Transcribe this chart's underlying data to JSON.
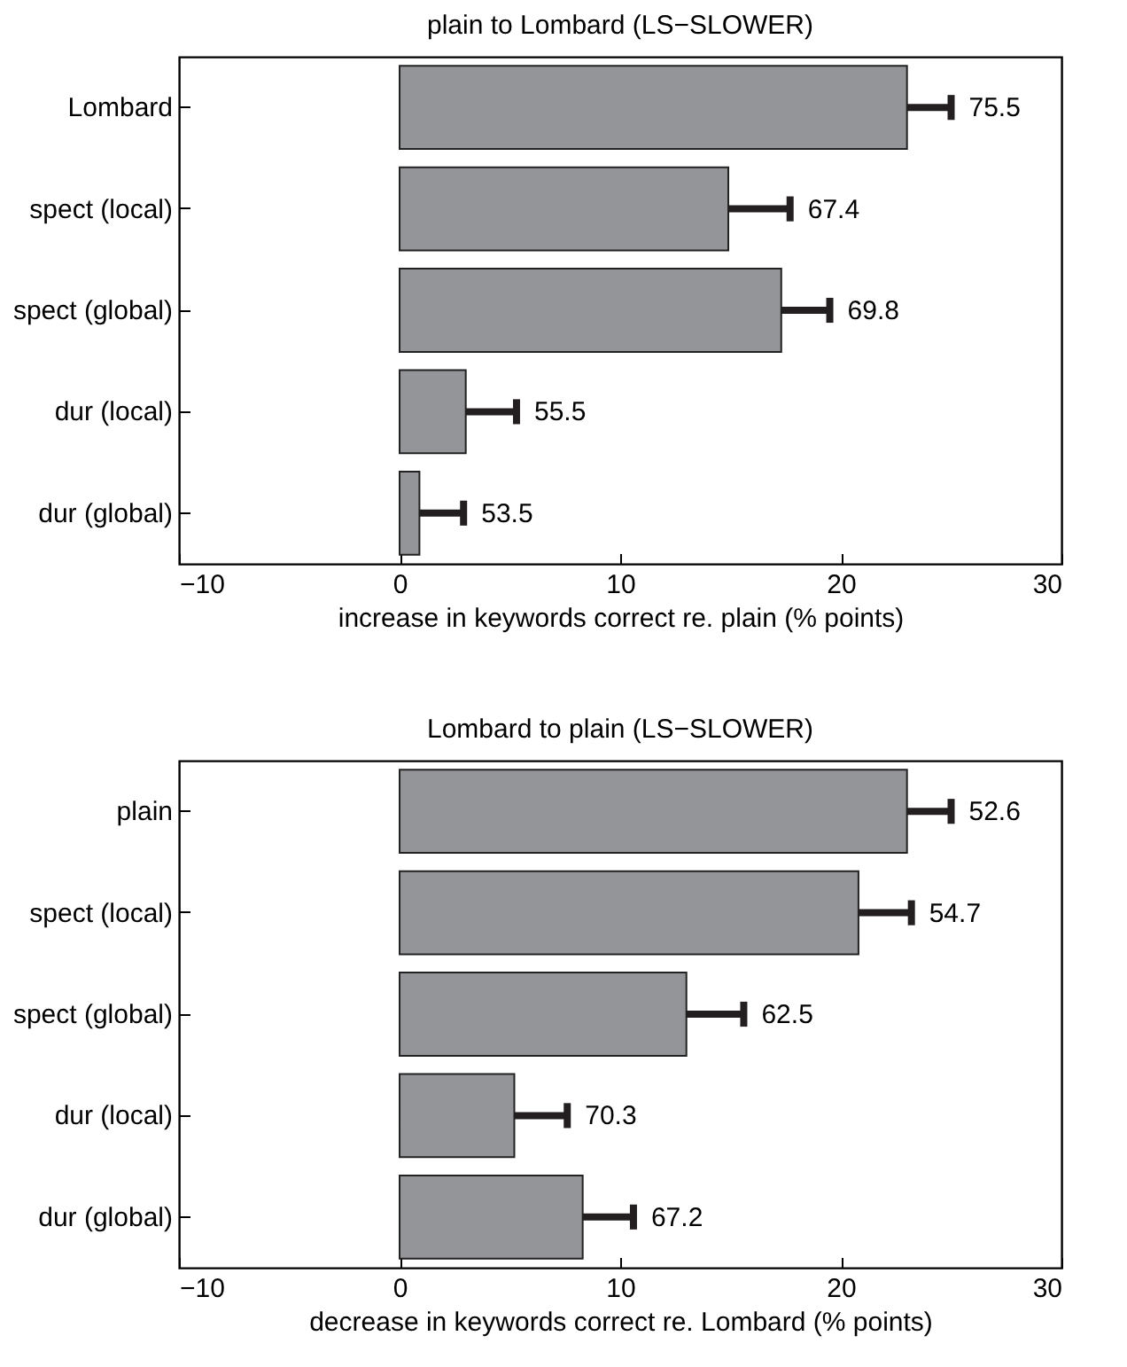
{
  "chart_data": [
    {
      "type": "bar",
      "orientation": "horizontal",
      "title": "plain to Lombard (LS−SLOWER)",
      "xlabel": "increase in keywords correct re. plain (% points)",
      "categories": [
        "Lombard",
        "spect (local)",
        "spect (global)",
        "dur (local)",
        "dur (global)"
      ],
      "values": [
        23.0,
        14.9,
        17.3,
        3.0,
        0.9
      ],
      "errors": [
        [
          23.0,
          25.0
        ],
        [
          14.9,
          17.7
        ],
        [
          17.3,
          19.5
        ],
        [
          3.0,
          5.3
        ],
        [
          0.9,
          2.9
        ]
      ],
      "color": "#939598",
      "xlim": [
        -10,
        30
      ],
      "xticks": [
        {
          "value": -10,
          "label": "−10"
        },
        0,
        10,
        20,
        30
      ],
      "annotations": [
        {
          "text": "75.5",
          "x": 25.0,
          "y": "Lombard"
        },
        {
          "text": "67.4",
          "x": 17.7,
          "y": "spect (local)"
        },
        {
          "text": "69.8",
          "x": 19.5,
          "y": "spect (global)"
        },
        {
          "text": "55.5",
          "x": 5.3,
          "y": "dur (local)"
        },
        {
          "text": "53.5",
          "x": 2.9,
          "y": "dur (global)"
        }
      ]
    },
    {
      "type": "bar",
      "orientation": "horizontal",
      "title": "Lombard to plain (LS−SLOWER)",
      "xlabel": "decrease in keywords correct re. Lombard (% points)",
      "categories": [
        "plain",
        "spect (local)",
        "spect (global)",
        "dur (local)",
        "dur (global)"
      ],
      "values": [
        23.0,
        20.8,
        13.0,
        5.2,
        8.3
      ],
      "errors": [
        [
          23.0,
          25.0
        ],
        [
          20.8,
          23.2
        ],
        [
          13.0,
          15.6
        ],
        [
          5.2,
          7.6
        ],
        [
          8.3,
          10.6
        ]
      ],
      "color": "#939598",
      "xlim": [
        -10,
        30
      ],
      "xticks": [
        {
          "value": -10,
          "label": "−10"
        },
        0,
        10,
        20,
        30
      ],
      "annotations": [
        {
          "text": "52.6",
          "x": 25.0,
          "y": "plain"
        },
        {
          "text": "54.7",
          "x": 23.2,
          "y": "spect (local)"
        },
        {
          "text": "62.5",
          "x": 15.6,
          "y": "spect (global)"
        },
        {
          "text": "70.3",
          "x": 7.6,
          "y": "dur (local)"
        },
        {
          "text": "67.2",
          "x": 10.6,
          "y": "dur (global)"
        }
      ]
    }
  ]
}
